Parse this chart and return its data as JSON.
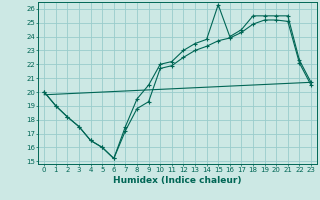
{
  "xlabel": "Humidex (Indice chaleur)",
  "bg_color": "#cce8e4",
  "grid_color": "#99cccc",
  "line_color": "#006655",
  "xlim": [
    -0.5,
    23.5
  ],
  "ylim": [
    14.8,
    26.5
  ],
  "yticks": [
    15,
    16,
    17,
    18,
    19,
    20,
    21,
    22,
    23,
    24,
    25,
    26
  ],
  "xticks": [
    0,
    1,
    2,
    3,
    4,
    5,
    6,
    7,
    8,
    9,
    10,
    11,
    12,
    13,
    14,
    15,
    16,
    17,
    18,
    19,
    20,
    21,
    22,
    23
  ],
  "line1_x": [
    0,
    1,
    2,
    3,
    4,
    5,
    6,
    7,
    8,
    9,
    10,
    11,
    12,
    13,
    14,
    15,
    16,
    17,
    18,
    19,
    20,
    21,
    22,
    23
  ],
  "line1_y": [
    20.0,
    19.0,
    18.2,
    17.5,
    16.5,
    16.0,
    15.2,
    17.5,
    19.5,
    20.5,
    22.0,
    22.2,
    23.0,
    23.5,
    23.8,
    26.3,
    24.0,
    24.5,
    25.5,
    25.5,
    25.5,
    25.5,
    22.3,
    20.7
  ],
  "line2_x": [
    0,
    1,
    2,
    3,
    4,
    5,
    6,
    7,
    8,
    9,
    10,
    11,
    12,
    13,
    14,
    15,
    16,
    17,
    18,
    19,
    20,
    21,
    22,
    23
  ],
  "line2_y": [
    20.0,
    19.0,
    18.2,
    17.5,
    16.5,
    16.0,
    15.2,
    17.2,
    18.8,
    19.3,
    21.7,
    21.9,
    22.5,
    23.0,
    23.3,
    23.7,
    23.9,
    24.3,
    24.9,
    25.2,
    25.2,
    25.1,
    22.1,
    20.5
  ],
  "line3_x": [
    0,
    23
  ],
  "line3_y": [
    19.8,
    20.7
  ],
  "tick_fontsize": 5.0,
  "xlabel_fontsize": 6.5
}
